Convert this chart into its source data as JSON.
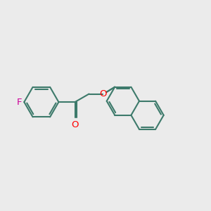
{
  "bg_color": "#ebebeb",
  "bond_color": "#3d7a6b",
  "F_color": "#cc0099",
  "O_color": "#ff0000",
  "line_width": 1.5,
  "dbo": 0.038,
  "font_size": 9.5,
  "xlim": [
    -2.2,
    2.2
  ],
  "ylim": [
    -0.85,
    1.05
  ]
}
